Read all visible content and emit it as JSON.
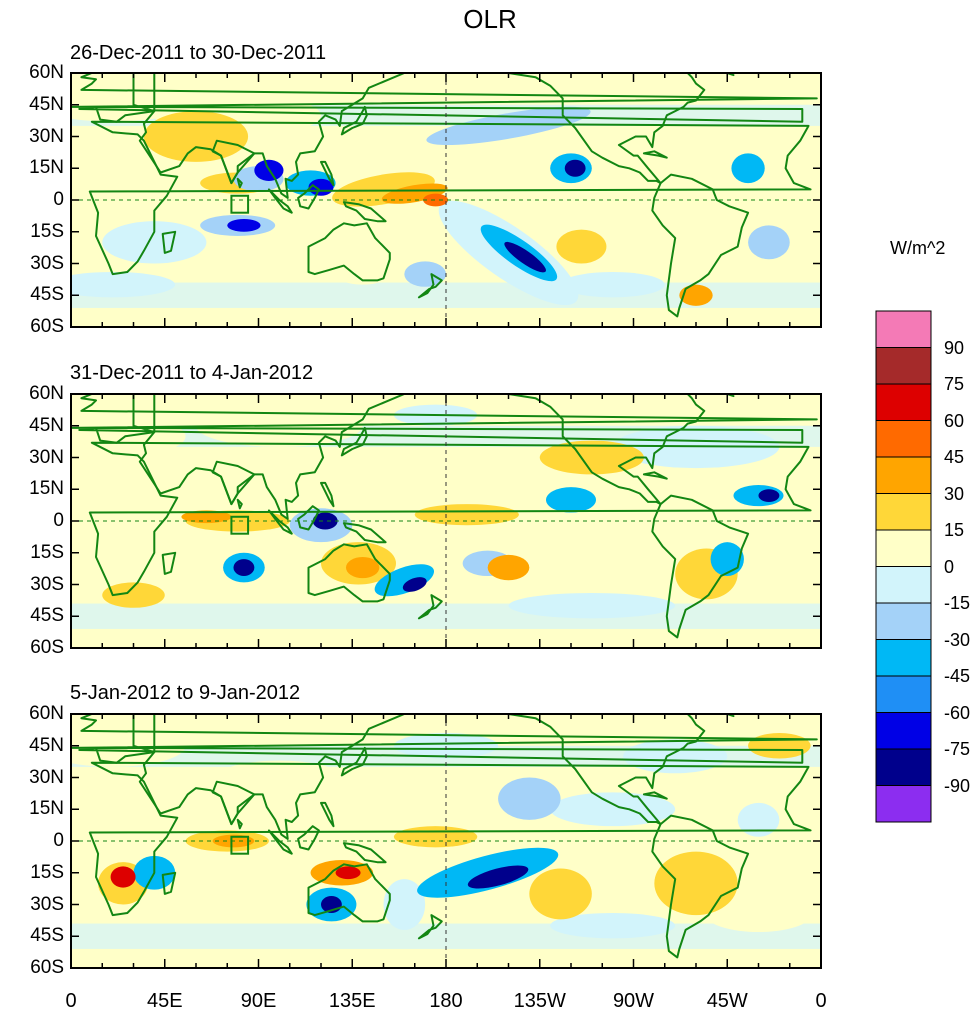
{
  "title": "OLR",
  "units": "W/m^2",
  "panels": [
    {
      "title": "26-Dec-2011 to 30-Dec-2011"
    },
    {
      "title": "31-Dec-2011 to 4-Jan-2012"
    },
    {
      "title": "5-Jan-2012 to 9-Jan-2012"
    }
  ],
  "y_ticks": [
    "60N",
    "45N",
    "30N",
    "15N",
    "0",
    "15S",
    "30S",
    "45S",
    "60S"
  ],
  "x_ticks": [
    "0",
    "45E",
    "90E",
    "135E",
    "180",
    "135W",
    "90W",
    "45W",
    "0"
  ],
  "colorbar": {
    "labels": [
      "90",
      "75",
      "60",
      "45",
      "30",
      "15",
      "0",
      "-15",
      "-30",
      "-45",
      "-60",
      "-75",
      "-90"
    ],
    "colors": [
      "#f47ab6",
      "#a52a2a",
      "#dd0000",
      "#ff6a00",
      "#ffa500",
      "#ffd738",
      "#ffffc8",
      "#d2f4fb",
      "#a4d2f8",
      "#00b8f5",
      "#1f8ff5",
      "#0000e6",
      "#00008c",
      "#8c2df0"
    ]
  },
  "palette": {
    "land": "#138613",
    "pos1": "#ffffc8",
    "pos2": "#ffd738",
    "pos3": "#ffa500",
    "pos4": "#ff6a00",
    "pos5": "#dd0000",
    "pos6": "#a52a2a",
    "neg1": "#d2f4fb",
    "neg2": "#a4d2f8",
    "neg3": "#00b8f5",
    "neg4": "#1f8ff5",
    "neg5": "#0000e6",
    "neg6": "#00008c"
  }
}
